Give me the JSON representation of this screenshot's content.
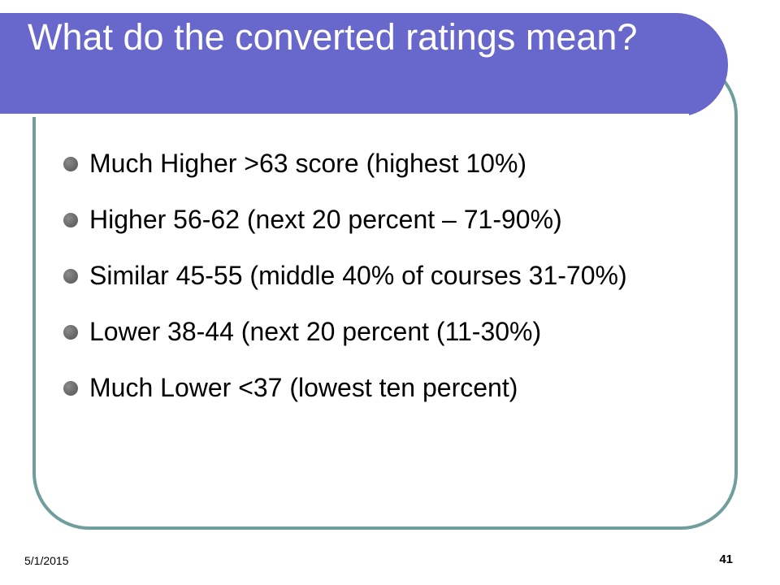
{
  "slide": {
    "title": "What do the converted ratings mean?",
    "bullets": [
      "Much Higher >63 score (highest 10%)",
      "Higher 56-62 (next 20 percent – 71-90%)",
      "Similar 45-55 (middle 40% of courses 31-70%)",
      "Lower 38-44 (next 20 percent (11-30%)",
      "Much Lower <37 (lowest ten percent)"
    ]
  },
  "footer": {
    "date": "5/1/2015",
    "page_number": "41"
  },
  "theme": {
    "title_bar_color": "#6868cc",
    "frame_border_color": "#6f9e9c",
    "bullet_color": "#6b6b6b"
  }
}
